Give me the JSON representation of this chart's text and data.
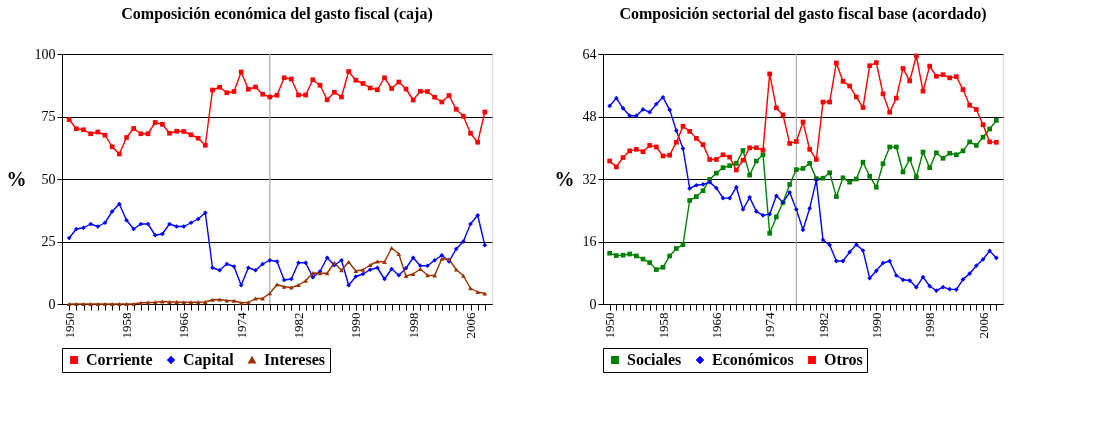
{
  "chart_data": [
    {
      "type": "line",
      "title": "Composición económica del gasto fiscal (caja)",
      "ylabel": "%",
      "x": [
        1950,
        1951,
        1952,
        1953,
        1954,
        1955,
        1956,
        1957,
        1958,
        1959,
        1960,
        1961,
        1962,
        1963,
        1964,
        1965,
        1966,
        1967,
        1968,
        1969,
        1970,
        1971,
        1972,
        1973,
        1974,
        1975,
        1976,
        1977,
        1978,
        1979,
        1980,
        1981,
        1982,
        1983,
        1984,
        1985,
        1986,
        1987,
        1988,
        1989,
        1990,
        1991,
        1992,
        1993,
        1994,
        1995,
        1996,
        1997,
        1998,
        1999,
        2000,
        2001,
        2002,
        2003,
        2004,
        2005,
        2006,
        2007,
        2008
      ],
      "series": [
        {
          "name": "Corriente",
          "color": "#ff0000",
          "marker": "square",
          "values": [
            73.8,
            70.1,
            69.7,
            68.1,
            68.8,
            67.5,
            62.9,
            60,
            66.6,
            70.2,
            68.1,
            68.1,
            72.6,
            71.9,
            68.3,
            69.1,
            69,
            67.7,
            66.3,
            63.5,
            85.6,
            86.7,
            84.5,
            85,
            92.8,
            85.9,
            86.8,
            83.9,
            82.8,
            83.5,
            90.5,
            90,
            83.6,
            83.6,
            89.7,
            87.5,
            81.7,
            84.7,
            82.8,
            93,
            89.5,
            88.2,
            86.4,
            85.7,
            90.5,
            86.2,
            88.8,
            86,
            81.6,
            85.1,
            85,
            82.7,
            80.8,
            83.4,
            77.9,
            75.1,
            68.3,
            64.7,
            76.8
          ]
        },
        {
          "name": "Capital",
          "color": "#0000ff",
          "marker": "diamond",
          "values": [
            26.4,
            30,
            30.5,
            32,
            31,
            32.5,
            37,
            40,
            33.5,
            30,
            32,
            32,
            27.5,
            28,
            32,
            31,
            31,
            32.5,
            34,
            36.5,
            14.5,
            13.5,
            16,
            15,
            7.5,
            14.5,
            13.5,
            16,
            17.5,
            17,
            9.6,
            10,
            16.5,
            16.5,
            10.7,
            13,
            18.5,
            15.5,
            17.5,
            7.5,
            11,
            12,
            13.7,
            14.5,
            10,
            14,
            11.5,
            14.3,
            18.5,
            15.3,
            15.3,
            17.5,
            19.5,
            17,
            22,
            25,
            32,
            35.5,
            23.5
          ]
        },
        {
          "name": "Intereses",
          "color": "#993300",
          "marker": "triangle",
          "values": [
            0,
            0,
            0,
            0,
            0,
            0,
            0,
            0,
            0,
            0,
            0.5,
            0.6,
            0.7,
            1,
            0.8,
            0.8,
            0.7,
            0.7,
            0.7,
            0.8,
            1.7,
            1.8,
            1.4,
            1.3,
            0.5,
            0.6,
            2.2,
            2.2,
            4.3,
            7.8,
            6.9,
            6.6,
            7.6,
            9.3,
            12.4,
            12.3,
            12.3,
            16.5,
            13.5,
            16.8,
            13.2,
            13.7,
            15.6,
            17,
            16.8,
            22.4,
            20,
            11.2,
            12,
            14,
            11.5,
            11.4,
            18.1,
            17.9,
            13.8,
            11.3,
            6.3,
            4.8,
            4.2
          ]
        }
      ],
      "xlim": [
        1949,
        2009
      ],
      "xticks": [
        1950,
        {
          "value": 1951,
          "label": null
        },
        {
          "value": 1952,
          "label": null
        },
        {
          "value": 1953,
          "label": null
        },
        {
          "value": 1954,
          "label": null
        },
        {
          "value": 1955,
          "label": null
        },
        {
          "value": 1956,
          "label": null
        },
        {
          "value": 1957,
          "label": null
        },
        1958,
        {
          "value": 1959,
          "label": null
        },
        {
          "value": 1960,
          "label": null
        },
        {
          "value": 1961,
          "label": null
        },
        {
          "value": 1962,
          "label": null
        },
        {
          "value": 1963,
          "label": null
        },
        {
          "value": 1964,
          "label": null
        },
        {
          "value": 1965,
          "label": null
        },
        1966,
        {
          "value": 1967,
          "label": null
        },
        {
          "value": 1968,
          "label": null
        },
        {
          "value": 1969,
          "label": null
        },
        {
          "value": 1970,
          "label": null
        },
        {
          "value": 1971,
          "label": null
        },
        {
          "value": 1972,
          "label": null
        },
        {
          "value": 1973,
          "label": null
        },
        1974,
        {
          "value": 1975,
          "label": null
        },
        {
          "value": 1976,
          "label": null
        },
        {
          "value": 1977,
          "label": null
        },
        {
          "value": 1978,
          "label": null
        },
        {
          "value": 1979,
          "label": null
        },
        {
          "value": 1980,
          "label": null
        },
        {
          "value": 1981,
          "label": null
        },
        1982,
        {
          "value": 1983,
          "label": null
        },
        {
          "value": 1984,
          "label": null
        },
        {
          "value": 1985,
          "label": null
        },
        {
          "value": 1986,
          "label": null
        },
        {
          "value": 1987,
          "label": null
        },
        {
          "value": 1988,
          "label": null
        },
        {
          "value": 1989,
          "label": null
        },
        1990,
        {
          "value": 1991,
          "label": null
        },
        {
          "value": 1992,
          "label": null
        },
        {
          "value": 1993,
          "label": null
        },
        {
          "value": 1994,
          "label": null
        },
        {
          "value": 1995,
          "label": null
        },
        {
          "value": 1996,
          "label": null
        },
        {
          "value": 1997,
          "label": null
        },
        1998,
        {
          "value": 1999,
          "label": null
        },
        {
          "value": 2000,
          "label": null
        },
        {
          "value": 2001,
          "label": null
        },
        {
          "value": 2002,
          "label": null
        },
        {
          "value": 2003,
          "label": null
        },
        {
          "value": 2004,
          "label": null
        },
        {
          "value": 2005,
          "label": null
        },
        2006,
        {
          "value": 2007,
          "label": null
        },
        {
          "value": 2008,
          "label": null
        }
      ],
      "ylim": [
        0,
        100
      ],
      "yticks": [
        0,
        25,
        50,
        75,
        100
      ],
      "ref_lines": [
        {
          "axis": "x",
          "value": 1978,
          "color": "#aaaaaa"
        }
      ],
      "grid": "y",
      "legend": "bottom",
      "line_style": "solid"
    },
    {
      "type": "line",
      "title": "Composición sectorial del gasto fiscal base  (acordado)",
      "ylabel": "%",
      "x": [
        1950,
        1951,
        1952,
        1953,
        1954,
        1955,
        1956,
        1957,
        1958,
        1959,
        1960,
        1961,
        1962,
        1963,
        1964,
        1965,
        1966,
        1967,
        1968,
        1969,
        1970,
        1971,
        1972,
        1973,
        1974,
        1975,
        1976,
        1977,
        1978,
        1979,
        1980,
        1981,
        1982,
        1983,
        1984,
        1985,
        1986,
        1987,
        1988,
        1989,
        1990,
        1991,
        1992,
        1993,
        1994,
        1995,
        1996,
        1997,
        1998,
        1999,
        2000,
        2001,
        2002,
        2003,
        2004,
        2005,
        2006,
        2007,
        2008
      ],
      "series": [
        {
          "name": "Sociales",
          "color": "#008000",
          "marker": "square",
          "values": [
            13,
            12.4,
            12.5,
            12.8,
            12.3,
            11.5,
            10.6,
            8.8,
            9.4,
            12.3,
            14.2,
            15.2,
            26.5,
            27.5,
            29,
            31.9,
            33.5,
            34.9,
            35.4,
            36,
            39.3,
            33,
            36.6,
            38.2,
            18.1,
            22.3,
            26,
            30.6,
            34.4,
            34.7,
            36,
            32.1,
            32.2,
            33.6,
            27.5,
            32.3,
            31.2,
            32,
            36.3,
            32.7,
            29.9,
            35.9,
            40.2,
            40.2,
            33.8,
            37.1,
            32.5,
            38.9,
            34.9,
            38.7,
            37.3,
            38.6,
            38.2,
            39.2,
            41.5,
            40.6,
            42.7,
            44.8,
            47
          ]
        },
        {
          "name": "Económicos",
          "color": "#0000ff",
          "marker": "diamond",
          "values": [
            50.7,
            52.7,
            50.1,
            48.2,
            48.2,
            49.8,
            49.1,
            51.2,
            52.9,
            49.7,
            44.4,
            39.8,
            29.6,
            30.4,
            30.6,
            31.2,
            29.7,
            27.1,
            27.1,
            29.9,
            24.2,
            27.3,
            23.7,
            22.7,
            23,
            27.7,
            26,
            28.6,
            24.2,
            19,
            24.5,
            31.7,
            16.4,
            15.1,
            11,
            11,
            13.3,
            15.2,
            13.7,
            6.6,
            8.5,
            10.5,
            11,
            7.3,
            6.2,
            6,
            4.3,
            6.9,
            4.6,
            3.4,
            4.3,
            3.8,
            3.7,
            6.3,
            7.8,
            9.8,
            11.4,
            13.6,
            11.8
          ]
        },
        {
          "name": "Otros",
          "color": "#ff0000",
          "marker": "square",
          "values": [
            36.6,
            35.1,
            37.5,
            39.2,
            39.6,
            39,
            40.6,
            40.2,
            37.9,
            38.1,
            41.4,
            45.5,
            44.2,
            42.4,
            40.8,
            37,
            37,
            38.2,
            37.6,
            34.3,
            36.8,
            40,
            40,
            39.4,
            58.9,
            50.2,
            48.4,
            41.1,
            41.6,
            46.6,
            39.6,
            37,
            51.7,
            51.7,
            61.7,
            57,
            55.8,
            53,
            50.3,
            61,
            61.8,
            53.8,
            49.1,
            52.7,
            60.3,
            57.1,
            63.5,
            54.5,
            60.9,
            58.3,
            58.7,
            57.9,
            58.2,
            54.9,
            50.9,
            49.8,
            45.9,
            41.5,
            41.4
          ]
        }
      ],
      "xlim": [
        1949,
        2009
      ],
      "xticks": [
        1950,
        {
          "value": 1951,
          "label": null
        },
        {
          "value": 1952,
          "label": null
        },
        {
          "value": 1953,
          "label": null
        },
        {
          "value": 1954,
          "label": null
        },
        {
          "value": 1955,
          "label": null
        },
        {
          "value": 1956,
          "label": null
        },
        {
          "value": 1957,
          "label": null
        },
        1958,
        {
          "value": 1959,
          "label": null
        },
        {
          "value": 1960,
          "label": null
        },
        {
          "value": 1961,
          "label": null
        },
        {
          "value": 1962,
          "label": null
        },
        {
          "value": 1963,
          "label": null
        },
        {
          "value": 1964,
          "label": null
        },
        {
          "value": 1965,
          "label": null
        },
        1966,
        {
          "value": 1967,
          "label": null
        },
        {
          "value": 1968,
          "label": null
        },
        {
          "value": 1969,
          "label": null
        },
        {
          "value": 1970,
          "label": null
        },
        {
          "value": 1971,
          "label": null
        },
        {
          "value": 1972,
          "label": null
        },
        {
          "value": 1973,
          "label": null
        },
        1974,
        {
          "value": 1975,
          "label": null
        },
        {
          "value": 1976,
          "label": null
        },
        {
          "value": 1977,
          "label": null
        },
        {
          "value": 1978,
          "label": null
        },
        {
          "value": 1979,
          "label": null
        },
        {
          "value": 1980,
          "label": null
        },
        {
          "value": 1981,
          "label": null
        },
        1982,
        {
          "value": 1983,
          "label": null
        },
        {
          "value": 1984,
          "label": null
        },
        {
          "value": 1985,
          "label": null
        },
        {
          "value": 1986,
          "label": null
        },
        {
          "value": 1987,
          "label": null
        },
        {
          "value": 1988,
          "label": null
        },
        {
          "value": 1989,
          "label": null
        },
        1990,
        {
          "value": 1991,
          "label": null
        },
        {
          "value": 1992,
          "label": null
        },
        {
          "value": 1993,
          "label": null
        },
        {
          "value": 1994,
          "label": null
        },
        {
          "value": 1995,
          "label": null
        },
        {
          "value": 1996,
          "label": null
        },
        {
          "value": 1997,
          "label": null
        },
        1998,
        {
          "value": 1999,
          "label": null
        },
        {
          "value": 2000,
          "label": null
        },
        {
          "value": 2001,
          "label": null
        },
        {
          "value": 2002,
          "label": null
        },
        {
          "value": 2003,
          "label": null
        },
        {
          "value": 2004,
          "label": null
        },
        {
          "value": 2005,
          "label": null
        },
        2006,
        {
          "value": 2007,
          "label": null
        },
        {
          "value": 2008,
          "label": null
        }
      ],
      "ylim": [
        0,
        64
      ],
      "yticks": [
        0,
        16,
        32,
        48,
        64
      ],
      "ref_lines": [
        {
          "axis": "x",
          "value": 1978,
          "color": "#aaaaaa"
        }
      ],
      "grid": "y",
      "legend": "bottom",
      "line_style": "solid"
    }
  ]
}
